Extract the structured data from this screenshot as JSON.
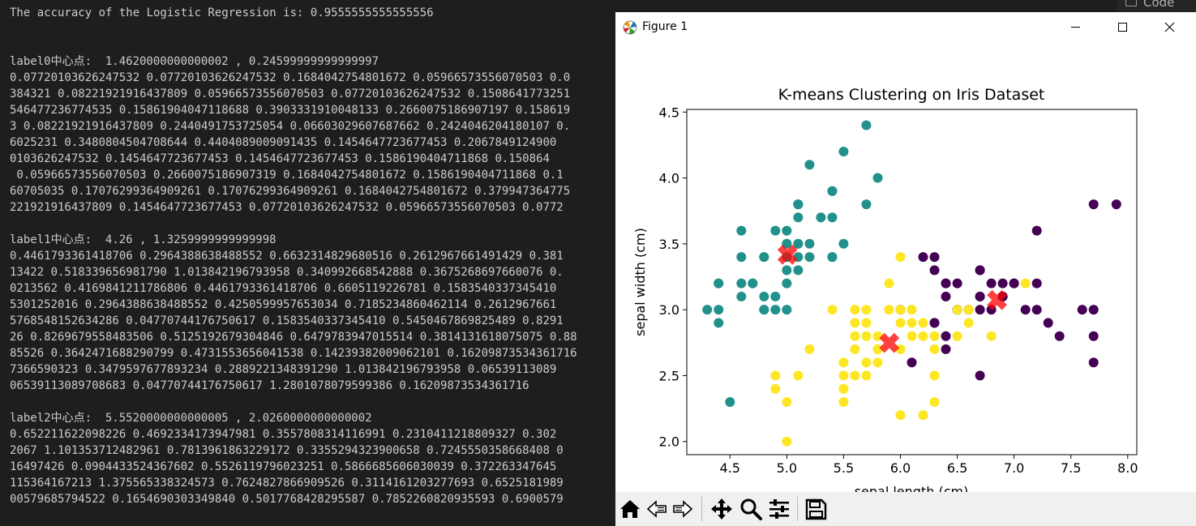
{
  "terminal": {
    "lines": [
      "The accuracy of the Logistic Regression is: 0.9555555555555556",
      "",
      "",
      "label0中心点:  1.4620000000000002 , 0.24599999999999997",
      "0.07720103626247532 0.07720103626247532 0.1684042754801672 0.05966573556070503 0.0",
      "384321 0.08221921916437809 0.05966573556070503 0.07720103626247532 0.1508641773251",
      "546477236774535 0.15861904047118688 0.3903331910048133 0.2660075186907197 0.158619",
      "3 0.08221921916437809 0.2440491753725054 0.06603029607687662 0.2424046204180107 0.",
      "6025231 0.3480804504708644 0.4404089009091435 0.1454647723677453 0.2067849124900",
      "0103626247532 0.1454647723677453 0.1454647723677453 0.1586190404711868 0.150864",
      " 0.05966573556070503 0.2660075186907319 0.1684042754801672 0.1586190404711868 0.1",
      "60705035 0.17076299364909261 0.17076299364909261 0.1684042754801672 0.379947364775",
      "221921916437809 0.1454647723677453 0.07720103626247532 0.05966573556070503 0.0772",
      "",
      "label1中心点:  4.26 , 1.3259999999999998",
      "0.4461793361418706 0.2964388638488552 0.6632314829680516 0.2612967661491429 0.381",
      "13422 0.518339656981790 1.013842196793958 0.340992668542888 0.3675268697660076 0.",
      "0213562 0.4169841211786806 0.4461793361418706 0.6605119226781 0.1583540337345410",
      "5301252016 0.2964388638488552 0.4250599957653034 0.7185234860462114 0.2612967661",
      "5768548152634286 0.04770744176750617 0.1583540337345410 0.5450467869825489 0.8291",
      "26 0.8269679558483506 0.5125192679304846 0.6479783947015514 0.3814131618075075 0.88",
      "85526 0.3642471688290799 0.4731553656041538 0.14239382009062101 0.16209873534361716",
      "7366590323 0.3479597677893234 0.2889221348391290 1.013842196793958 0.06539113089",
      "06539113089708683 0.04770744176750617 1.2801078079599386 0.16209873534361716",
      "",
      "label2中心点:  5.5520000000000005 , 2.0260000000000002",
      "0.652211622098226 0.4692334173947981 0.3557808314116991 0.2310411218809327 0.302",
      "2067 1.101353712482961 0.7813961863229172 0.3355294323900658 0.7245550358668408 0",
      "16497426 0.0904433524367602 0.5526119796023251 0.5866685606030039 0.372263347645",
      "115364167213 1.375565338324573 0.7624827866909526 0.3114161203277693 0.6525181989",
      "00579685794522 0.1654690303349840 0.5017768428295587 0.7852260820935593 0.6900579"
    ]
  },
  "code_tab": {
    "label": "Code"
  },
  "window": {
    "title": "Figure 1"
  },
  "toolbar": {
    "icons": [
      "home-icon",
      "back-arrow-icon",
      "forward-arrow-icon",
      "pan-move-icon",
      "zoom-magnifier-icon",
      "configure-subplots-icon",
      "save-floppy-icon"
    ]
  },
  "colors": {
    "cluster0": "#440154",
    "cluster1": "#21918c",
    "cluster2": "#fde725",
    "centroid": "#ff0000"
  },
  "chart_data": {
    "type": "scatter",
    "title": "K-means Clustering on Iris Dataset",
    "xlabel": "sepal length (cm)",
    "ylabel": "sepal width (cm)",
    "xlim": [
      4.12,
      8.08
    ],
    "ylim": [
      1.9,
      4.52
    ],
    "xticks": [
      "4.5",
      "5.0",
      "5.5",
      "6.0",
      "6.5",
      "7.0",
      "7.5",
      "8.0"
    ],
    "yticks": [
      "2.0",
      "2.5",
      "3.0",
      "3.5",
      "4.0",
      "4.5"
    ],
    "grid": false,
    "series": [
      {
        "color": "#440154",
        "points": [
          [
            7.0,
            3.2
          ],
          [
            6.4,
            3.2
          ],
          [
            6.9,
            3.1
          ],
          [
            6.3,
            3.3
          ],
          [
            6.7,
            3.1
          ],
          [
            6.3,
            2.9
          ],
          [
            7.1,
            3.0
          ],
          [
            6.3,
            2.9
          ],
          [
            6.5,
            3.0
          ],
          [
            7.6,
            3.0
          ],
          [
            7.3,
            2.9
          ],
          [
            6.7,
            2.5
          ],
          [
            7.2,
            3.6
          ],
          [
            6.5,
            3.2
          ],
          [
            6.4,
            2.7
          ],
          [
            6.8,
            3.0
          ],
          [
            6.4,
            3.2
          ],
          [
            7.7,
            3.8
          ],
          [
            7.7,
            2.6
          ],
          [
            6.9,
            3.2
          ],
          [
            7.7,
            2.8
          ],
          [
            6.7,
            3.3
          ],
          [
            7.2,
            3.2
          ],
          [
            7.2,
            3.0
          ],
          [
            7.4,
            2.8
          ],
          [
            7.9,
            3.8
          ],
          [
            6.4,
            2.8
          ],
          [
            6.1,
            2.6
          ],
          [
            7.7,
            3.0
          ],
          [
            6.3,
            3.4
          ],
          [
            6.4,
            3.1
          ],
          [
            6.9,
            3.1
          ],
          [
            6.7,
            3.1
          ],
          [
            6.9,
            3.1
          ],
          [
            6.8,
            3.2
          ],
          [
            6.7,
            3.3
          ],
          [
            6.7,
            3.0
          ],
          [
            6.5,
            3.0
          ],
          [
            6.2,
            3.4
          ],
          [
            6.0,
            3.0
          ],
          [
            6.6,
            3.0
          ],
          [
            7.0,
            3.2
          ]
        ]
      },
      {
        "color": "#21918c",
        "points": [
          [
            5.1,
            3.5
          ],
          [
            4.9,
            3.0
          ],
          [
            4.7,
            3.2
          ],
          [
            4.6,
            3.1
          ],
          [
            5.0,
            3.6
          ],
          [
            5.4,
            3.9
          ],
          [
            4.6,
            3.4
          ],
          [
            5.0,
            3.4
          ],
          [
            4.4,
            2.9
          ],
          [
            4.9,
            3.1
          ],
          [
            5.4,
            3.7
          ],
          [
            4.8,
            3.4
          ],
          [
            4.8,
            3.0
          ],
          [
            4.3,
            3.0
          ],
          [
            5.8,
            4.0
          ],
          [
            5.7,
            4.4
          ],
          [
            5.4,
            3.9
          ],
          [
            5.1,
            3.5
          ],
          [
            5.7,
            3.8
          ],
          [
            5.1,
            3.8
          ],
          [
            5.4,
            3.4
          ],
          [
            5.1,
            3.7
          ],
          [
            4.6,
            3.6
          ],
          [
            5.1,
            3.3
          ],
          [
            4.8,
            3.4
          ],
          [
            5.0,
            3.0
          ],
          [
            5.0,
            3.4
          ],
          [
            5.2,
            3.5
          ],
          [
            5.2,
            3.4
          ],
          [
            4.7,
            3.2
          ],
          [
            4.8,
            3.1
          ],
          [
            5.4,
            3.4
          ],
          [
            5.2,
            4.1
          ],
          [
            5.5,
            4.2
          ],
          [
            5.0,
            3.2
          ],
          [
            5.5,
            3.5
          ],
          [
            4.4,
            3.0
          ],
          [
            5.1,
            3.4
          ],
          [
            5.0,
            3.5
          ],
          [
            4.5,
            2.3
          ],
          [
            4.4,
            3.2
          ],
          [
            5.0,
            3.5
          ],
          [
            5.1,
            3.8
          ],
          [
            4.8,
            3.0
          ],
          [
            5.1,
            3.8
          ],
          [
            4.6,
            3.2
          ],
          [
            5.3,
            3.7
          ],
          [
            5.0,
            3.3
          ],
          [
            4.9,
            3.6
          ],
          [
            4.4,
            3.2
          ]
        ]
      },
      {
        "color": "#fde725",
        "points": [
          [
            5.5,
            2.3
          ],
          [
            6.5,
            2.8
          ],
          [
            5.7,
            2.8
          ],
          [
            4.9,
            2.4
          ],
          [
            6.6,
            2.9
          ],
          [
            5.2,
            2.7
          ],
          [
            5.0,
            2.0
          ],
          [
            5.9,
            3.0
          ],
          [
            6.0,
            2.2
          ],
          [
            6.1,
            2.9
          ],
          [
            5.6,
            2.9
          ],
          [
            5.6,
            3.0
          ],
          [
            5.8,
            2.7
          ],
          [
            6.2,
            2.2
          ],
          [
            5.6,
            2.5
          ],
          [
            5.9,
            3.2
          ],
          [
            6.1,
            2.8
          ],
          [
            6.3,
            2.5
          ],
          [
            6.1,
            2.8
          ],
          [
            6.6,
            3.0
          ],
          [
            6.0,
            2.9
          ],
          [
            5.7,
            2.6
          ],
          [
            5.5,
            2.4
          ],
          [
            5.5,
            2.4
          ],
          [
            5.8,
            2.7
          ],
          [
            6.0,
            2.7
          ],
          [
            5.4,
            3.0
          ],
          [
            6.0,
            3.4
          ],
          [
            6.3,
            2.3
          ],
          [
            5.6,
            3.0
          ],
          [
            5.5,
            2.5
          ],
          [
            5.5,
            2.6
          ],
          [
            6.1,
            3.0
          ],
          [
            5.8,
            2.6
          ],
          [
            5.0,
            2.3
          ],
          [
            5.6,
            2.7
          ],
          [
            5.7,
            3.0
          ],
          [
            5.7,
            2.9
          ],
          [
            6.2,
            2.9
          ],
          [
            5.1,
            2.5
          ],
          [
            5.7,
            2.8
          ],
          [
            5.8,
            2.7
          ],
          [
            4.9,
            2.5
          ],
          [
            5.7,
            2.5
          ],
          [
            5.8,
            2.8
          ],
          [
            6.0,
            2.2
          ],
          [
            5.6,
            2.8
          ],
          [
            6.3,
            2.7
          ],
          [
            6.2,
            2.8
          ],
          [
            6.1,
            3.0
          ],
          [
            6.3,
            2.8
          ],
          [
            6.0,
            3.0
          ],
          [
            5.8,
            2.7
          ],
          [
            6.3,
            2.5
          ],
          [
            6.5,
            3.0
          ],
          [
            5.9,
            3.0
          ],
          [
            7.1,
            3.2
          ],
          [
            6.8,
            2.8
          ]
        ]
      }
    ],
    "centroids": [
      [
        5.006,
        3.418
      ],
      [
        6.85,
        3.074
      ],
      [
        5.902,
        2.748
      ]
    ]
  }
}
